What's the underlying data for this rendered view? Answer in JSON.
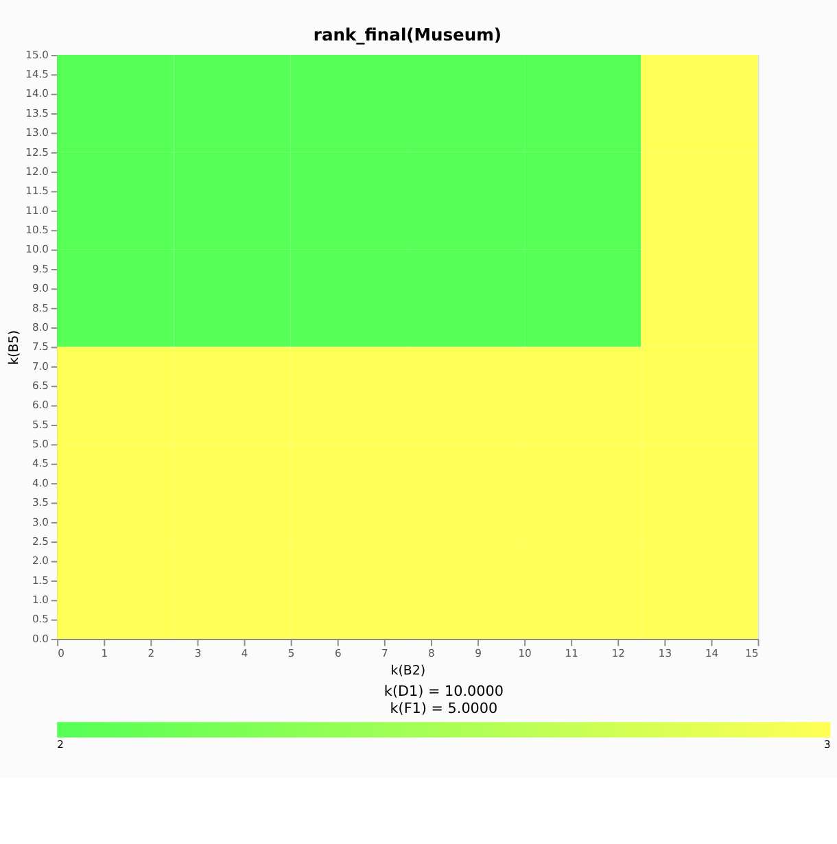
{
  "chart_data": {
    "type": "heatmap",
    "title": "rank_final(Museum)",
    "xlabel": "k(B2)",
    "ylabel": "k(B5)",
    "x": [
      1.25,
      3.75,
      6.25,
      8.75,
      11.25,
      13.75
    ],
    "y": [
      13.75,
      11.25,
      8.75,
      6.25,
      3.75,
      1.25
    ],
    "cells": [
      [
        2,
        2,
        2,
        2,
        2,
        3
      ],
      [
        2,
        2,
        2,
        2,
        2,
        3
      ],
      [
        2,
        2,
        2,
        2,
        2,
        3
      ],
      [
        3,
        3,
        3,
        3,
        3,
        3
      ],
      [
        3,
        3,
        3,
        3,
        3,
        3
      ],
      [
        3,
        3,
        3,
        3,
        3,
        3
      ]
    ],
    "clim": [
      2,
      3
    ],
    "cticks": [
      2,
      3
    ],
    "colors": [
      "#55ff55",
      "#ffff55"
    ],
    "xlim": [
      0,
      15
    ],
    "ylim": [
      0,
      15
    ],
    "xticks": [
      0,
      1,
      2,
      3,
      4,
      5,
      6,
      7,
      8,
      9,
      10,
      11,
      12,
      13,
      14,
      15
    ],
    "yticks": [
      {
        "value": 0,
        "label": "0.0"
      },
      {
        "value": 0.5,
        "label": "0.5"
      },
      {
        "value": 1,
        "label": "1.0"
      },
      {
        "value": 1.5,
        "label": "1.5"
      },
      {
        "value": 2,
        "label": "2.0"
      },
      {
        "value": 2.5,
        "label": "2.5"
      },
      {
        "value": 3,
        "label": "3.0"
      },
      {
        "value": 3.5,
        "label": "3.5"
      },
      {
        "value": 4,
        "label": "4.0"
      },
      {
        "value": 4.5,
        "label": "4.5"
      },
      {
        "value": 5,
        "label": "5.0"
      },
      {
        "value": 5.5,
        "label": "5.5"
      },
      {
        "value": 6,
        "label": "6.0"
      },
      {
        "value": 6.5,
        "label": "6.5"
      },
      {
        "value": 7,
        "label": "7.0"
      },
      {
        "value": 7.5,
        "label": "7.5"
      },
      {
        "value": 8,
        "label": "8.0"
      },
      {
        "value": 8.5,
        "label": "8.5"
      },
      {
        "value": 9,
        "label": "9.0"
      },
      {
        "value": 9.5,
        "label": "9.5"
      },
      {
        "value": 10,
        "label": "10.0"
      },
      {
        "value": 10.5,
        "label": "10.5"
      },
      {
        "value": 11,
        "label": "11.0"
      },
      {
        "value": 11.5,
        "label": "11.5"
      },
      {
        "value": 12,
        "label": "12.0"
      },
      {
        "value": 12.5,
        "label": "12.5"
      },
      {
        "value": 13,
        "label": "13.0"
      },
      {
        "value": 13.5,
        "label": "13.5"
      },
      {
        "value": 14,
        "label": "14.0"
      },
      {
        "value": 14.5,
        "label": "14.5"
      },
      {
        "value": 15,
        "label": "15.0"
      }
    ],
    "annotations": [
      "k(D1) =   10.0000",
      "k(F1) =    5.0000"
    ],
    "grid": false
  }
}
